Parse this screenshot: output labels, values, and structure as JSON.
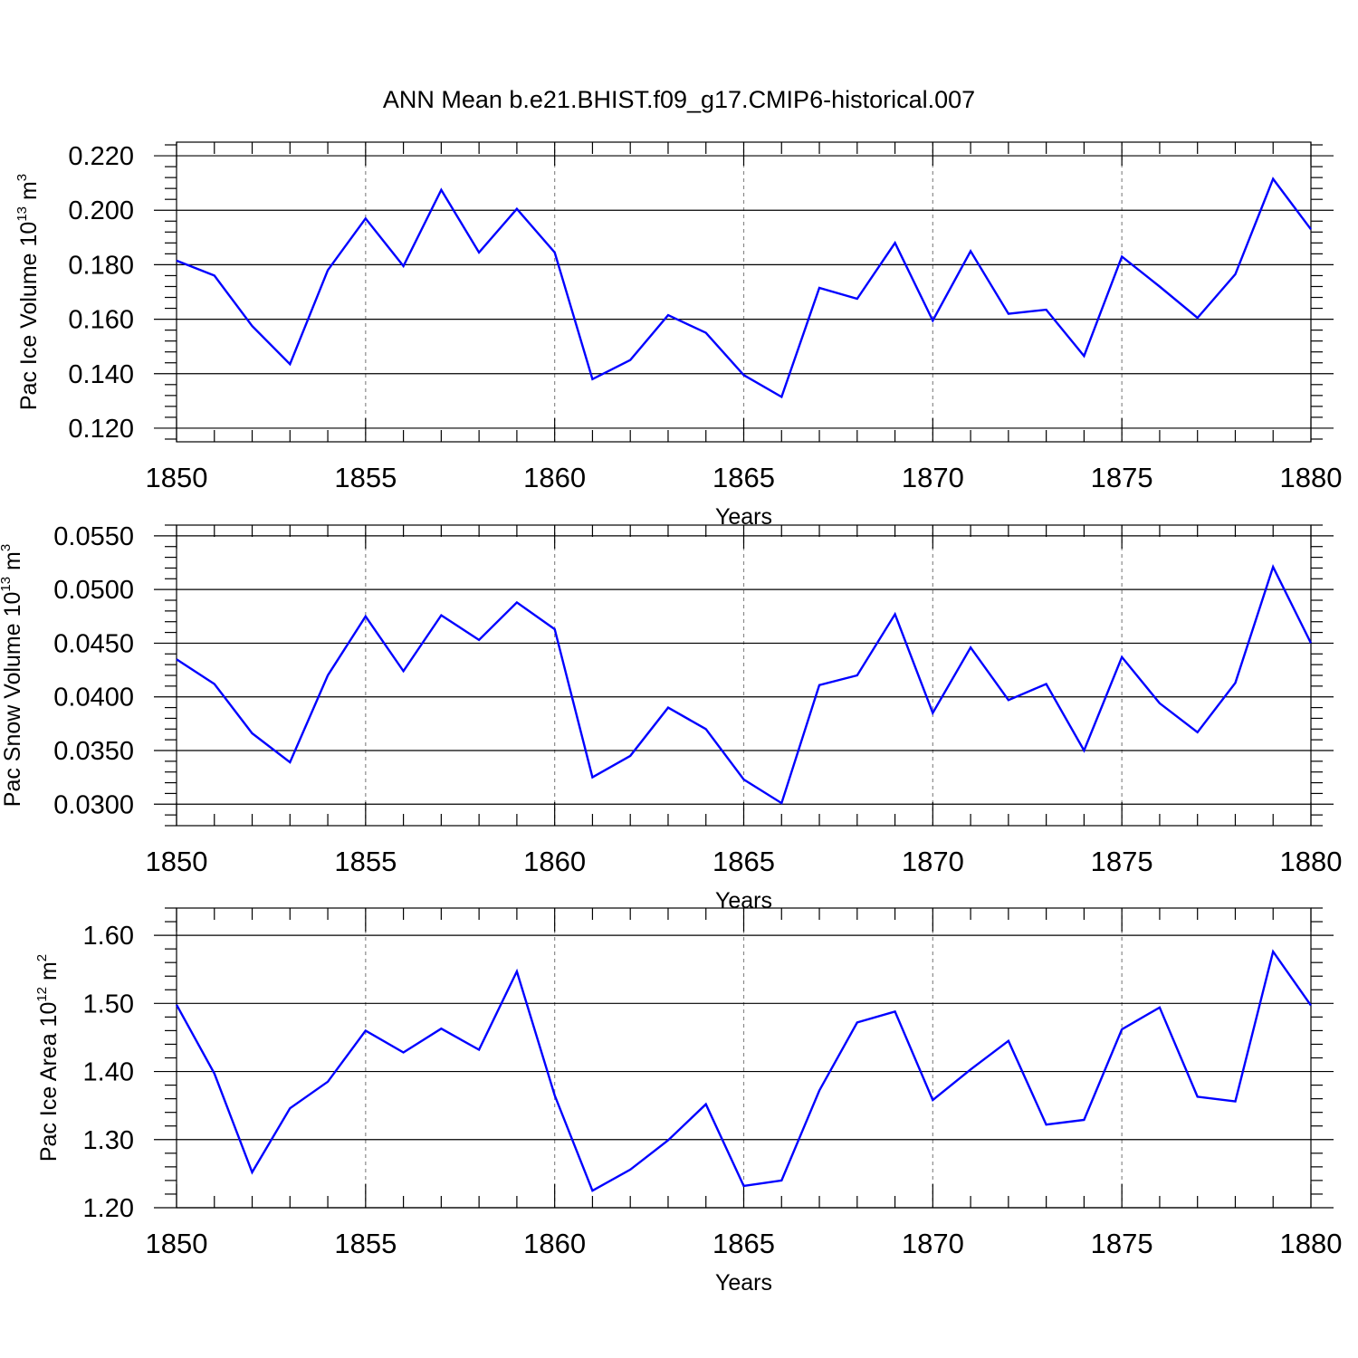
{
  "chart_data": [
    {
      "type": "line",
      "title": "ANN Mean b.e21.BHIST.f09_g17.CMIP6-historical.007",
      "xlabel": "Years",
      "ylabel": {
        "main": "Pac Ice Volume 10",
        "exp": "13",
        "unit": " m",
        "unit_exp": "3"
      },
      "xlim": [
        1850,
        1880
      ],
      "ylim": [
        0.115,
        0.225
      ],
      "xticks": [
        1850,
        1855,
        1860,
        1865,
        1870,
        1875,
        1880
      ],
      "yticks": [
        0.12,
        0.14,
        0.16,
        0.18,
        0.2,
        0.22
      ],
      "ytick_labels": [
        "0.120",
        "0.140",
        "0.160",
        "0.180",
        "0.200",
        "0.220"
      ],
      "grid_x": [
        1855,
        1860,
        1865,
        1870,
        1875
      ],
      "x": [
        1850,
        1851,
        1852,
        1853,
        1854,
        1855,
        1856,
        1857,
        1858,
        1859,
        1860,
        1861,
        1862,
        1863,
        1864,
        1865,
        1866,
        1867,
        1868,
        1869,
        1870,
        1871,
        1872,
        1873,
        1874,
        1875,
        1876,
        1877,
        1878,
        1879,
        1880
      ],
      "series": [
        {
          "name": "Pac Ice Volume",
          "color": "#0000ff",
          "values": [
            0.1815,
            0.176,
            0.1575,
            0.1435,
            0.178,
            0.197,
            0.1795,
            0.2075,
            0.1845,
            0.2005,
            0.1845,
            0.138,
            0.145,
            0.1615,
            0.155,
            0.1395,
            0.1315,
            0.1715,
            0.1675,
            0.188,
            0.1595,
            0.185,
            0.162,
            0.1635,
            0.1465,
            0.183,
            0.172,
            0.1605,
            0.1765,
            0.2115,
            0.193
          ]
        }
      ]
    },
    {
      "type": "line",
      "title": "",
      "xlabel": "Years",
      "ylabel": {
        "main": "Pac Snow Volume 10",
        "exp": "13",
        "unit": " m",
        "unit_exp": "3"
      },
      "xlim": [
        1850,
        1880
      ],
      "ylim": [
        0.028,
        0.056
      ],
      "xticks": [
        1850,
        1855,
        1860,
        1865,
        1870,
        1875,
        1880
      ],
      "yticks": [
        0.03,
        0.035,
        0.04,
        0.045,
        0.05,
        0.055
      ],
      "ytick_labels": [
        "0.0300",
        "0.0350",
        "0.0400",
        "0.0450",
        "0.0500",
        "0.0550"
      ],
      "grid_x": [
        1855,
        1860,
        1865,
        1870,
        1875
      ],
      "x": [
        1850,
        1851,
        1852,
        1853,
        1854,
        1855,
        1856,
        1857,
        1858,
        1859,
        1860,
        1861,
        1862,
        1863,
        1864,
        1865,
        1866,
        1867,
        1868,
        1869,
        1870,
        1871,
        1872,
        1873,
        1874,
        1875,
        1876,
        1877,
        1878,
        1879,
        1880
      ],
      "series": [
        {
          "name": "Pac Snow Volume",
          "color": "#0000ff",
          "values": [
            0.0435,
            0.0412,
            0.0366,
            0.0339,
            0.042,
            0.0475,
            0.0424,
            0.0476,
            0.0453,
            0.0488,
            0.0463,
            0.0325,
            0.0345,
            0.039,
            0.037,
            0.0323,
            0.0301,
            0.0411,
            0.042,
            0.0477,
            0.0385,
            0.0446,
            0.0397,
            0.0412,
            0.035,
            0.0437,
            0.0394,
            0.0367,
            0.0413,
            0.0521,
            0.045
          ]
        }
      ]
    },
    {
      "type": "line",
      "title": "",
      "xlabel": "Years",
      "ylabel": {
        "main": "Pac Ice Area 10",
        "exp": "12",
        "unit": " m",
        "unit_exp": "2"
      },
      "xlim": [
        1850,
        1880
      ],
      "ylim": [
        1.2,
        1.64
      ],
      "xticks": [
        1850,
        1855,
        1860,
        1865,
        1870,
        1875,
        1880
      ],
      "yticks": [
        1.2,
        1.3,
        1.4,
        1.5,
        1.6
      ],
      "ytick_labels": [
        "1.20",
        "1.30",
        "1.40",
        "1.50",
        "1.60"
      ],
      "grid_x": [
        1855,
        1860,
        1865,
        1870,
        1875
      ],
      "x": [
        1850,
        1851,
        1852,
        1853,
        1854,
        1855,
        1856,
        1857,
        1858,
        1859,
        1860,
        1861,
        1862,
        1863,
        1864,
        1865,
        1866,
        1867,
        1868,
        1869,
        1870,
        1871,
        1872,
        1873,
        1874,
        1875,
        1876,
        1877,
        1878,
        1879,
        1880
      ],
      "series": [
        {
          "name": "Pac Ice Area",
          "color": "#0000ff",
          "values": [
            1.498,
            1.397,
            1.252,
            1.346,
            1.385,
            1.46,
            1.428,
            1.463,
            1.432,
            1.547,
            1.365,
            1.225,
            1.256,
            1.299,
            1.352,
            1.232,
            1.24,
            1.372,
            1.472,
            1.488,
            1.358,
            1.403,
            1.445,
            1.322,
            1.329,
            1.462,
            1.494,
            1.363,
            1.356,
            1.576,
            1.497
          ]
        }
      ]
    }
  ]
}
